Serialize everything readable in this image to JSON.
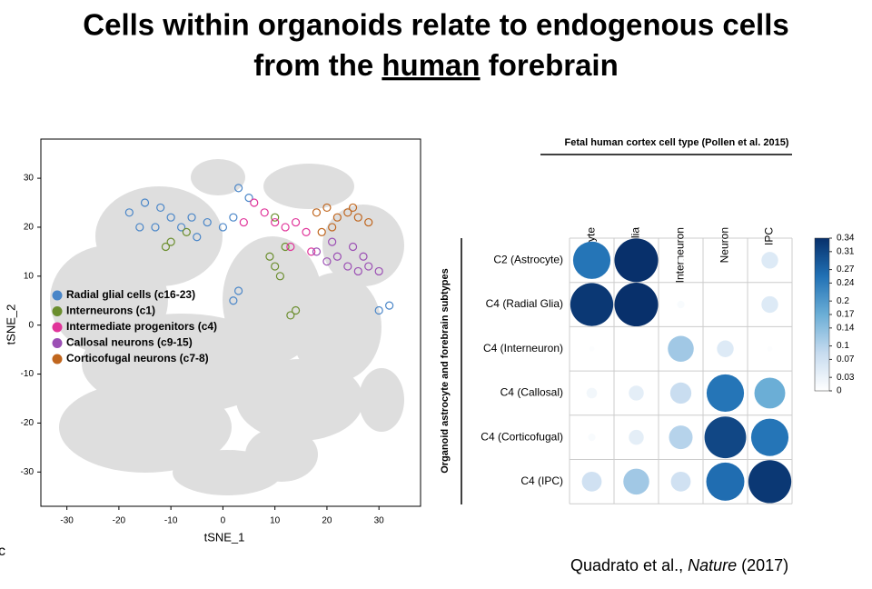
{
  "title": {
    "line1": "Cells within organoids relate to endogenous cells",
    "line2_pre": "from the",
    "line2_emph": "human",
    "line2_post": "forebrain"
  },
  "panel_label": "c",
  "citation": {
    "authors": "Quadrato et al.,",
    "journal": "Nature",
    "year": "(2017)"
  },
  "chart_data": [
    {
      "type": "scatter",
      "x_label": "tSNE_1",
      "y_label": "tSNE_2",
      "xlim": [
        -35,
        38
      ],
      "ylim": [
        -37,
        38
      ],
      "xticks": [
        -30,
        -20,
        -10,
        0,
        10,
        20,
        30
      ],
      "yticks": [
        -30,
        -20,
        -10,
        0,
        10,
        20,
        30
      ],
      "series": [
        {
          "name": "Radial glial cells (c16-23)",
          "color": "#4a86c8",
          "x": [
            -18,
            -16,
            -15,
            -13,
            -12,
            -10,
            -8,
            -6,
            -5,
            -3,
            0,
            2,
            3,
            5,
            3,
            2,
            30,
            32
          ],
          "y": [
            23,
            20,
            25,
            20,
            24,
            22,
            20,
            22,
            18,
            21,
            20,
            22,
            28,
            26,
            7,
            5,
            3,
            4
          ]
        },
        {
          "name": "Interneurons (c1)",
          "color": "#6b8e2e",
          "x": [
            -11,
            -10,
            -7,
            9,
            10,
            10,
            11,
            12,
            13,
            14
          ],
          "y": [
            16,
            17,
            19,
            14,
            22,
            12,
            10,
            16,
            2,
            3
          ]
        },
        {
          "name": "Intermediate progenitors (c4)",
          "color": "#e0359a",
          "x": [
            4,
            6,
            8,
            10,
            12,
            13,
            14,
            16,
            17
          ],
          "y": [
            21,
            25,
            23,
            21,
            20,
            16,
            21,
            19,
            15
          ]
        },
        {
          "name": "Callosal neurons (c9-15)",
          "color": "#9b4fb4",
          "x": [
            18,
            20,
            21,
            22,
            24,
            25,
            26,
            27,
            28,
            30
          ],
          "y": [
            15,
            13,
            17,
            14,
            12,
            16,
            11,
            14,
            12,
            11
          ]
        },
        {
          "name": "Corticofugal neurons (c7-8)",
          "color": "#c0661e",
          "x": [
            18,
            19,
            20,
            21,
            22,
            24,
            25,
            26,
            28
          ],
          "y": [
            23,
            19,
            24,
            20,
            22,
            23,
            24,
            22,
            21
          ]
        }
      ]
    },
    {
      "type": "dot_matrix",
      "title": "Fetal human cortex cell type (Pollen et al. 2015)",
      "y_label": "Organoid astrocyte and forebrain subtypes",
      "columns": [
        "Astrocyte",
        "Radial Glia",
        "Interneuron",
        "Neuron",
        "IPC"
      ],
      "rows": [
        "C2 (Astrocyte)",
        "C4 (Radial Glia)",
        "C4 (Interneuron)",
        "C4 (Callosal)",
        "C4 (Corticofugal)",
        "C4 (IPC)"
      ],
      "values": [
        [
          0.25,
          0.34,
          0.005,
          0,
          0.05
        ],
        [
          0.33,
          0.34,
          0.01,
          0,
          0.05
        ],
        [
          0.005,
          0,
          0.12,
          0.05,
          0.005
        ],
        [
          0.02,
          0.04,
          0.08,
          0.25,
          0.17
        ],
        [
          0.01,
          0.04,
          0.1,
          0.31,
          0.25
        ],
        [
          0.07,
          0.12,
          0.07,
          0.26,
          0.33
        ]
      ],
      "clim": [
        0,
        0.34
      ],
      "cticks": [
        0,
        0.03,
        0.07,
        0.1,
        0.14,
        0.17,
        0.2,
        0.24,
        0.27,
        0.31,
        0.34
      ],
      "colormap": [
        "#ffffff",
        "#c6dbef",
        "#6baed6",
        "#2171b5",
        "#08306b"
      ]
    }
  ]
}
